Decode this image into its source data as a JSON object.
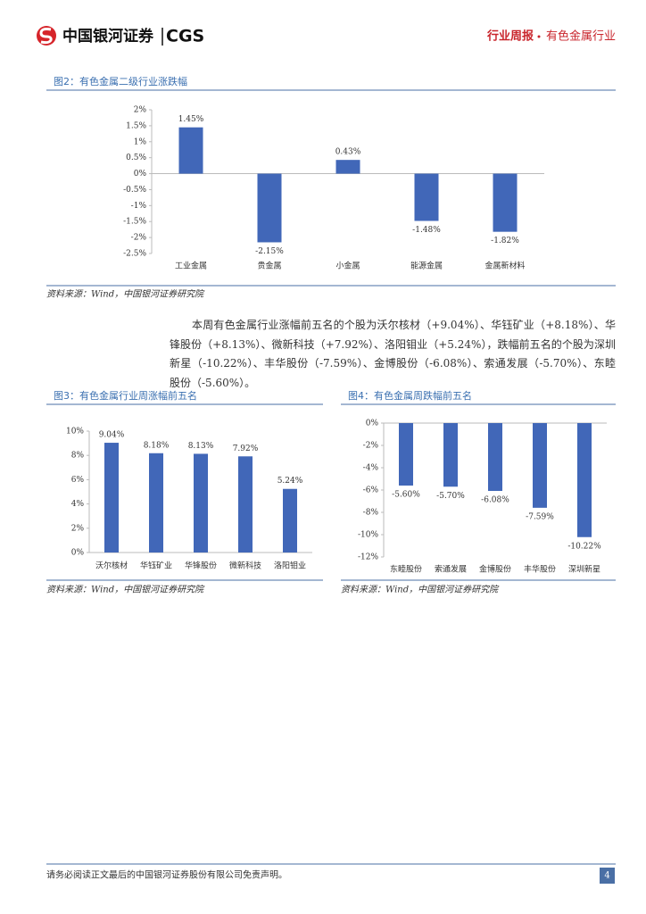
{
  "header": {
    "logo_cn": "中国银河证券",
    "logo_en": "CGS",
    "report_type": "行业周报",
    "industry": "有色金属行业"
  },
  "paragraph": "本周有色金属行业涨幅前五名的个股为沃尔核材（+9.04%）、华钰矿业（+8.18%）、华锋股份（+8.13%）、微新科技（+7.92%）、洛阳钼业（+5.24%），跌幅前五名的个股为深圳新星（-10.22%）、丰华股份（-7.59%）、金博股份（-6.08%）、索通发展（-5.70%）、东睦股份（-5.60%）。",
  "footer": {
    "disclaimer": "请务必阅读正文最后的中国银河证券股份有限公司免责声明。",
    "page": "4"
  },
  "chart_data": [
    {
      "type": "bar",
      "title": "图2：有色金属二级行业涨跌幅",
      "source": "资料来源：Wind，中国银河证券研究院",
      "color": "#4167b8",
      "categories": [
        "工业金属",
        "贵金属",
        "小金属",
        "能源金属",
        "金属新材料"
      ],
      "values": [
        1.45,
        -2.15,
        0.43,
        -1.48,
        -1.82
      ],
      "value_labels": [
        "1.45%",
        "-2.15%",
        "0.43%",
        "-1.48%",
        "-1.82%"
      ],
      "ylim": [
        -2.5,
        2
      ],
      "yticks": [
        {
          "value": 2,
          "label": "2%"
        },
        {
          "value": 1.5,
          "label": "1.5%"
        },
        {
          "value": 1,
          "label": "1%"
        },
        {
          "value": 0.5,
          "label": "0.5%"
        },
        {
          "value": 0,
          "label": "0%"
        },
        {
          "value": -0.5,
          "label": "-0.5%"
        },
        {
          "value": -1,
          "label": "-1%"
        },
        {
          "value": -1.5,
          "label": "-1.5%"
        },
        {
          "value": -2,
          "label": "-2%"
        },
        {
          "value": -2.5,
          "label": "-2.5%"
        }
      ]
    },
    {
      "type": "bar",
      "title": "图3：有色金属行业周涨幅前五名",
      "source": "资料来源：Wind，中国银河证券研究院",
      "color": "#4167b8",
      "categories": [
        "沃尔核材",
        "华钰矿业",
        "华锋股份",
        "微新科技",
        "洛阳钼业"
      ],
      "values": [
        9.04,
        8.18,
        8.13,
        7.92,
        5.24
      ],
      "value_labels": [
        "9.04%",
        "8.18%",
        "8.13%",
        "7.92%",
        "5.24%"
      ],
      "ylim": [
        0,
        10
      ],
      "yticks": [
        {
          "value": 10,
          "label": "10%"
        },
        {
          "value": 8,
          "label": "8%"
        },
        {
          "value": 6,
          "label": "6%"
        },
        {
          "value": 4,
          "label": "4%"
        },
        {
          "value": 2,
          "label": "2%"
        },
        {
          "value": 0,
          "label": "0%"
        }
      ]
    },
    {
      "type": "bar",
      "title": "图4：有色金属周跌幅前五名",
      "source": "资料来源：Wind，中国银河证券研究院",
      "color": "#4167b8",
      "categories": [
        "东睦股份",
        "索通发展",
        "金博股份",
        "丰华股份",
        "深圳新星"
      ],
      "values": [
        -5.6,
        -5.7,
        -6.08,
        -7.59,
        -10.22
      ],
      "value_labels": [
        "-5.60%",
        "-5.70%",
        "-6.08%",
        "-7.59%",
        "-10.22%"
      ],
      "ylim": [
        -12,
        0
      ],
      "yticks": [
        {
          "value": 0,
          "label": "0%"
        },
        {
          "value": -2,
          "label": "-2%"
        },
        {
          "value": -4,
          "label": "-4%"
        },
        {
          "value": -6,
          "label": "-6%"
        },
        {
          "value": -8,
          "label": "-8%"
        },
        {
          "value": -10,
          "label": "-10%"
        },
        {
          "value": -12,
          "label": "-12%"
        }
      ]
    }
  ]
}
